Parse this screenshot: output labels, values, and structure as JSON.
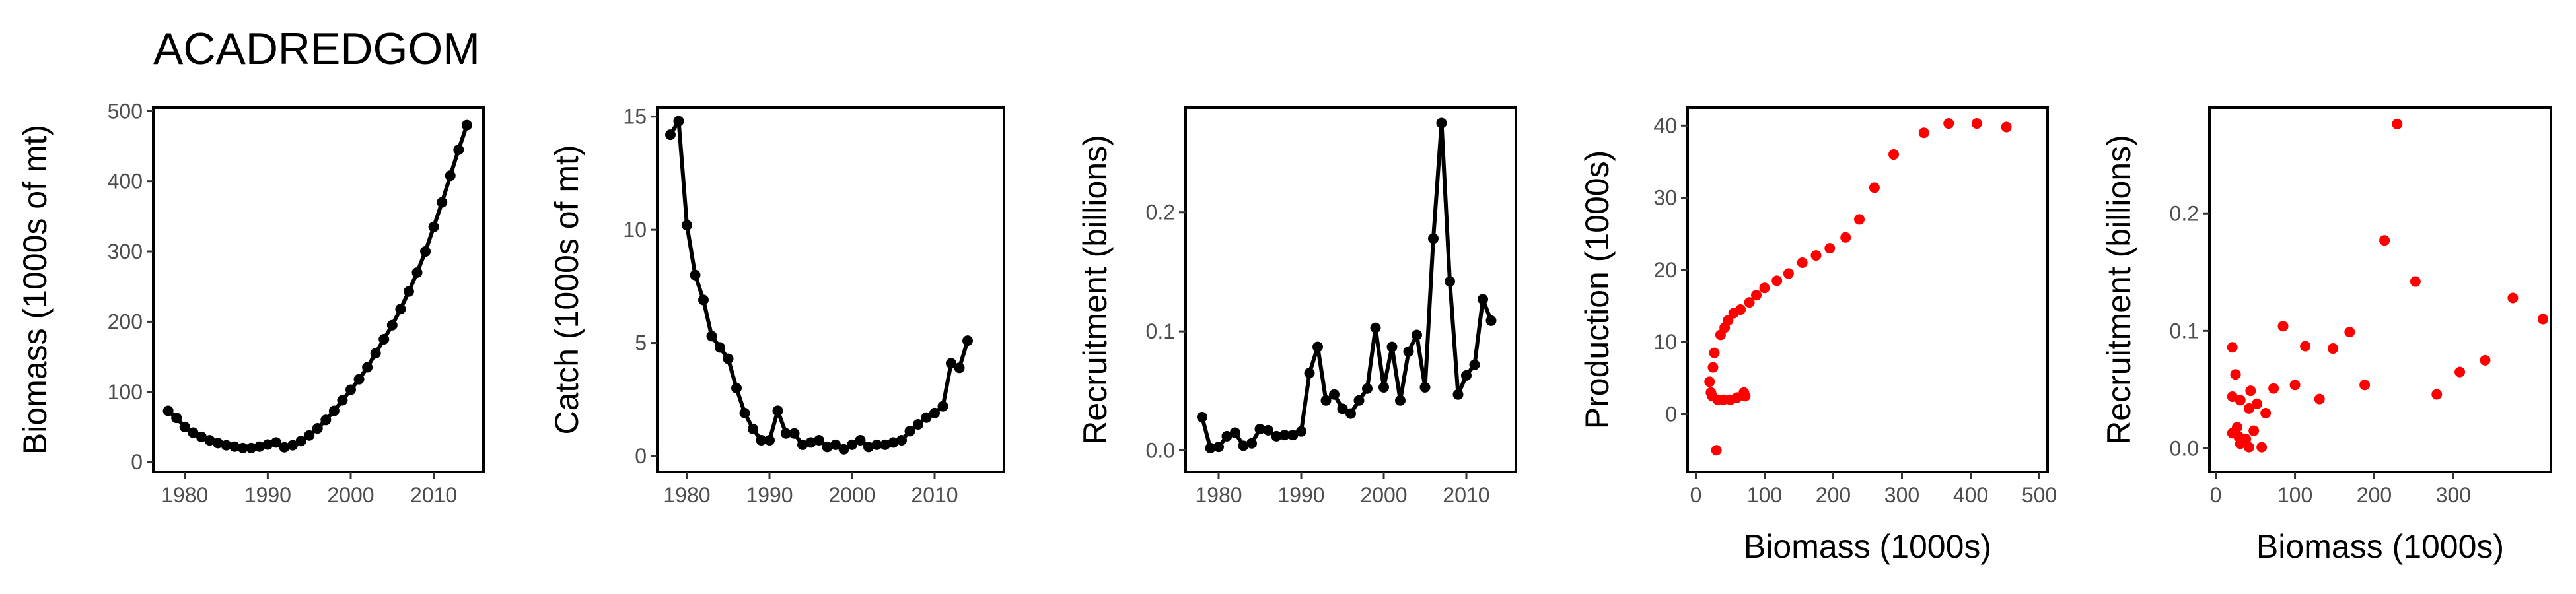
{
  "title": "ACADREDGOM",
  "chart_data": [
    {
      "type": "line",
      "ylabel": "Biomass (1000s of mt)",
      "color": "#000000",
      "x": [
        1978,
        1979,
        1980,
        1981,
        1982,
        1983,
        1984,
        1985,
        1986,
        1987,
        1988,
        1989,
        1990,
        1991,
        1992,
        1993,
        1994,
        1995,
        1996,
        1997,
        1998,
        1999,
        2000,
        2001,
        2002,
        2003,
        2004,
        2005,
        2006,
        2007,
        2008,
        2009,
        2010,
        2011,
        2012,
        2013,
        2014
      ],
      "values": [
        73,
        63,
        50,
        42,
        36,
        31,
        27,
        24,
        22,
        20,
        20,
        22,
        25,
        28,
        21,
        24,
        30,
        38,
        48,
        60,
        73,
        88,
        103,
        118,
        135,
        155,
        175,
        195,
        218,
        243,
        270,
        300,
        335,
        370,
        408,
        445,
        480
      ],
      "xlim": [
        1976.2,
        2016
      ],
      "ylim": [
        -14,
        505
      ],
      "xticks": [
        1980,
        1990,
        2000,
        2010
      ],
      "yticks": [
        0,
        100,
        200,
        300,
        400,
        500
      ]
    },
    {
      "type": "line",
      "ylabel": "Catch (1000s of mt)",
      "color": "#000000",
      "x": [
        1978,
        1979,
        1980,
        1981,
        1982,
        1983,
        1984,
        1985,
        1986,
        1987,
        1988,
        1989,
        1990,
        1991,
        1992,
        1993,
        1994,
        1995,
        1996,
        1997,
        1998,
        1999,
        2000,
        2001,
        2002,
        2003,
        2004,
        2005,
        2006,
        2007,
        2008,
        2009,
        2010,
        2011,
        2012,
        2013,
        2014
      ],
      "values": [
        14.2,
        14.8,
        10.2,
        8.0,
        6.9,
        5.3,
        4.8,
        4.3,
        3.0,
        1.9,
        1.2,
        0.7,
        0.7,
        2.0,
        1.0,
        1.0,
        0.5,
        0.6,
        0.7,
        0.4,
        0.5,
        0.3,
        0.5,
        0.7,
        0.4,
        0.5,
        0.5,
        0.6,
        0.7,
        1.1,
        1.4,
        1.7,
        1.9,
        2.2,
        4.1,
        3.9,
        5.1
      ],
      "xlim": [
        1976.4,
        2018.4
      ],
      "ylim": [
        -0.7,
        15.4
      ],
      "xticks": [
        1980,
        1990,
        2000,
        2010
      ],
      "yticks": [
        0,
        5,
        10,
        15
      ]
    },
    {
      "type": "line",
      "ylabel": "Recruitment (billions)",
      "color": "#000000",
      "x": [
        1978,
        1979,
        1980,
        1981,
        1982,
        1983,
        1984,
        1985,
        1986,
        1987,
        1988,
        1989,
        1990,
        1991,
        1992,
        1993,
        1994,
        1995,
        1996,
        1997,
        1998,
        1999,
        2000,
        2001,
        2002,
        2003,
        2004,
        2005,
        2006,
        2007,
        2008,
        2009,
        2010,
        2011,
        2012,
        2013
      ],
      "values": [
        0.028,
        0.002,
        0.003,
        0.012,
        0.015,
        0.004,
        0.006,
        0.018,
        0.017,
        0.012,
        0.013,
        0.013,
        0.016,
        0.065,
        0.087,
        0.042,
        0.047,
        0.035,
        0.031,
        0.042,
        0.052,
        0.103,
        0.053,
        0.087,
        0.042,
        0.083,
        0.097,
        0.053,
        0.178,
        0.275,
        0.142,
        0.047,
        0.063,
        0.072,
        0.127,
        0.109
      ],
      "xlim": [
        1976,
        2016
      ],
      "ylim": [
        -0.018,
        0.288
      ],
      "xticks": [
        1980,
        1990,
        2000,
        2010
      ],
      "yticks": [
        {
          "value": 0,
          "label": "0.0"
        },
        0.1,
        0.2
      ]
    },
    {
      "type": "scatter",
      "xlabel": "Biomass (1000s)",
      "ylabel": "Production (1000s)",
      "color": "#ff0000",
      "x": [
        20,
        22,
        24,
        25,
        27,
        30,
        32,
        36,
        40,
        42,
        47,
        50,
        55,
        60,
        65,
        70,
        72,
        78,
        88,
        100,
        118,
        135,
        155,
        175,
        195,
        218,
        238,
        260,
        288,
        332,
        368,
        409,
        452
      ],
      "values": [
        4.5,
        3,
        2.5,
        6.5,
        8.5,
        -5,
        2,
        11,
        2,
        12,
        13,
        2,
        14,
        2.3,
        14.5,
        3,
        2.5,
        15.5,
        16.5,
        17.5,
        18.5,
        19.5,
        21,
        22,
        23,
        24.5,
        27,
        31.4,
        36,
        39,
        40.3,
        40.3,
        39.8
      ],
      "xlim": [
        -12,
        512
      ],
      "ylim": [
        -8,
        42.5
      ],
      "xticks": [
        0,
        100,
        200,
        300,
        400,
        500
      ],
      "yticks": [
        0,
        10,
        20,
        30,
        40
      ]
    },
    {
      "type": "scatter",
      "xlabel": "Biomass (1000s)",
      "ylabel": "Recruitment (billions)",
      "color": "#ff0000",
      "x": [
        21,
        25,
        21,
        31,
        42,
        27,
        21,
        29,
        38,
        31,
        42,
        58,
        48,
        52,
        63,
        73,
        44,
        85,
        100,
        113,
        131,
        148,
        169,
        188,
        213,
        229,
        252,
        279,
        308,
        340,
        375,
        413
      ],
      "values": [
        0.086,
        0.063,
        0.044,
        0.041,
        0.034,
        0.018,
        0.013,
        0.01,
        0.008,
        0.004,
        0.001,
        0.001,
        0.015,
        0.038,
        0.03,
        0.051,
        0.049,
        0.104,
        0.054,
        0.087,
        0.042,
        0.085,
        0.099,
        0.054,
        0.177,
        0.276,
        0.142,
        0.046,
        0.065,
        0.075,
        0.128,
        0.11
      ],
      "xlim": [
        -8,
        423
      ],
      "ylim": [
        -0.02,
        0.29
      ],
      "xticks": [
        0,
        100,
        200,
        300
      ],
      "yticks": [
        {
          "value": 0,
          "label": "0.0"
        },
        0.1,
        0.2
      ]
    }
  ]
}
